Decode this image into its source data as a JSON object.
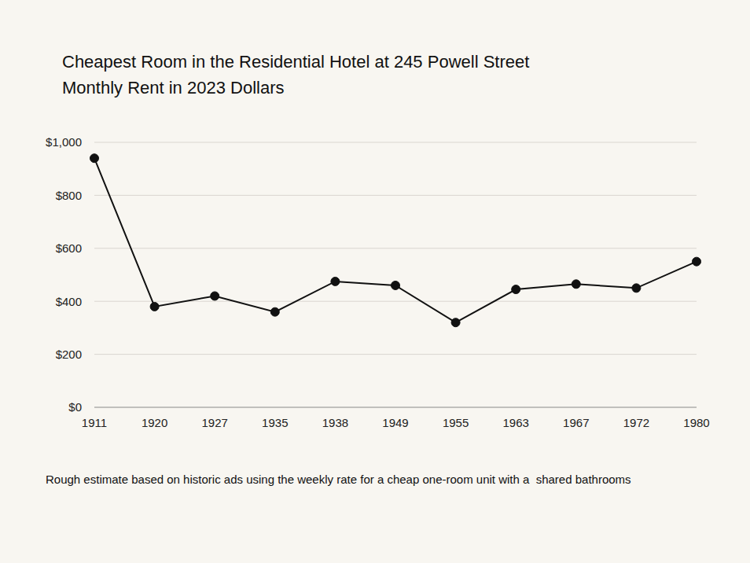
{
  "chart_data": {
    "type": "line",
    "title": "Cheapest Room in the Residential Hotel at 245 Powell Street",
    "subtitle": "Monthly Rent in 2023 Dollars",
    "footnote": "Rough estimate based on historic ads using the weekly rate for a cheap one-room unit with a  shared bathrooms",
    "categories": [
      "1911",
      "1920",
      "1927",
      "1935",
      "1938",
      "1949",
      "1955",
      "1963",
      "1967",
      "1972",
      "1980"
    ],
    "values": [
      940,
      380,
      420,
      360,
      475,
      460,
      320,
      445,
      465,
      450,
      550
    ],
    "color": "#111111",
    "marker": "circle",
    "line_style": "solid",
    "ylim": [
      0,
      1000
    ],
    "yticks": [
      {
        "value": 0,
        "label": "$0"
      },
      {
        "value": 200,
        "label": "$200"
      },
      {
        "value": 400,
        "label": "$400"
      },
      {
        "value": 600,
        "label": "$600"
      },
      {
        "value": 800,
        "label": "$800"
      },
      {
        "value": 1000,
        "label": "$1,000"
      }
    ],
    "grid": true
  }
}
